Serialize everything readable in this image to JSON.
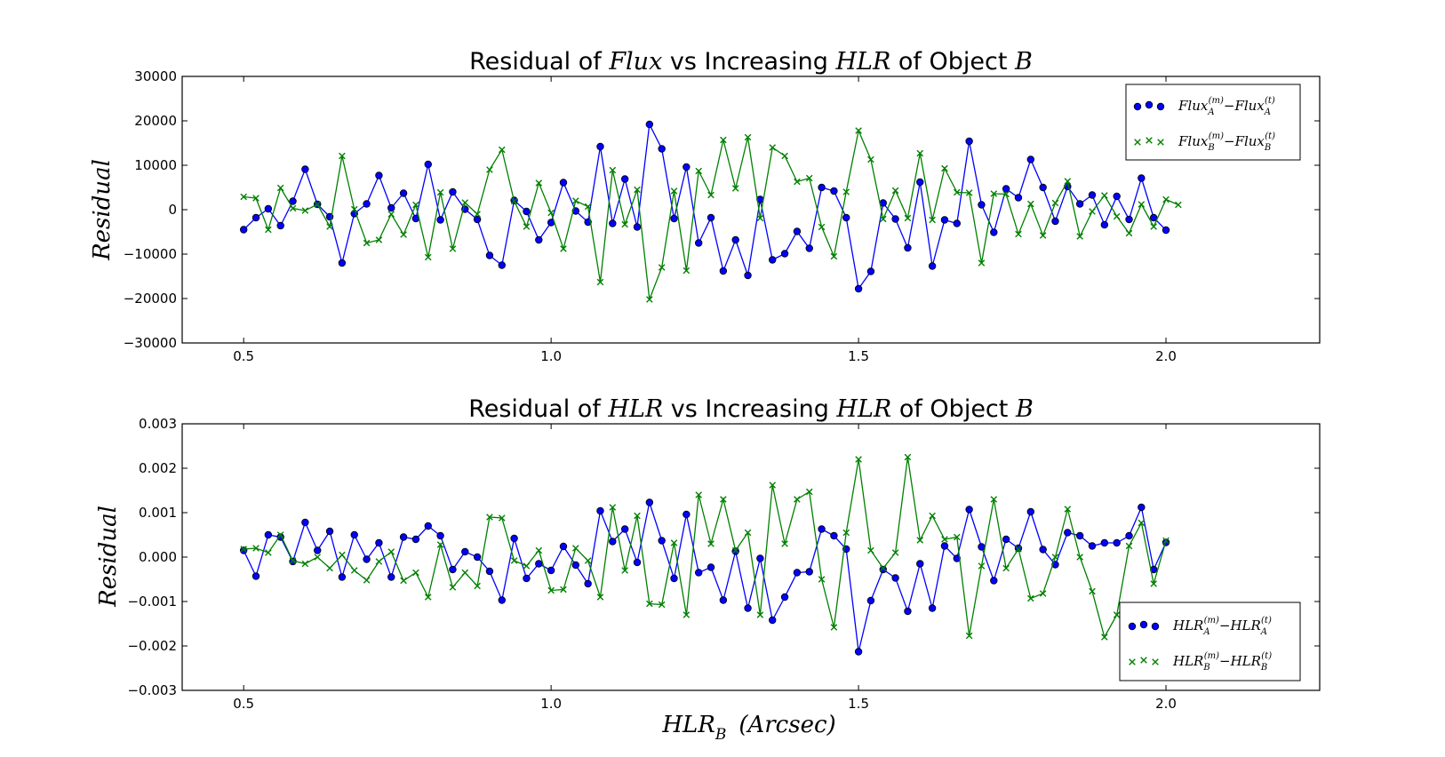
{
  "colors": {
    "blue": "#0000ff",
    "green": "#008000",
    "axes": "#000000"
  },
  "xlabel": {
    "main": "HLR",
    "sub": "B",
    "unit": "(Arcsec)"
  },
  "chart_data": [
    {
      "type": "line",
      "title": {
        "pre": "Residual of ",
        "m1": "Flux",
        "mid": " vs Increasing ",
        "m2": "HLR",
        "post": " of Object ",
        "m3": "B"
      },
      "ylabel": "Residual",
      "xlim": [
        0.4,
        2.25
      ],
      "ylim": [
        -30000,
        30000
      ],
      "xticks": [
        0.5,
        1.0,
        1.5,
        2.0
      ],
      "xtick_labels": [
        "0.5",
        "1.0",
        "1.5",
        "2.0"
      ],
      "yticks": [
        -30000,
        -20000,
        -10000,
        0,
        10000,
        20000,
        30000
      ],
      "ytick_labels": [
        "−30000",
        "−20000",
        "−10000",
        "0",
        "10000",
        "20000",
        "30000"
      ],
      "legend_position": "top-right",
      "x_start": 0.5,
      "x_step": 0.02,
      "series": [
        {
          "marker": "circle",
          "color": "#0000ff",
          "legend": {
            "base": "Flux",
            "sub": "A",
            "sup1": "(m)",
            "minus": "−",
            "base2": "Flux",
            "sub2": "A",
            "sup2": "(t)"
          },
          "values": [
            -4500,
            -1800,
            200,
            -3600,
            1900,
            9100,
            1200,
            -1600,
            -12000,
            -900,
            1300,
            7700,
            400,
            3700,
            -2000,
            10200,
            -2300,
            4000,
            100,
            -2200,
            -10300,
            -12500,
            2100,
            -400,
            -6800,
            -2900,
            6100,
            -300,
            -2800,
            14200,
            -3100,
            6900,
            -3900,
            19200,
            13700,
            -2000,
            9600,
            -7500,
            -1800,
            -13800,
            -6800,
            -14800,
            2300,
            -11300,
            -9900,
            -4900,
            -8700,
            5000,
            4200,
            -1800,
            -17800,
            -13900,
            1500,
            -2100,
            -8600,
            6200,
            -12700,
            -2300,
            -3100,
            15400,
            1100,
            -5100,
            4700,
            2700,
            11300,
            5000,
            -2600,
            5200,
            1300,
            3300,
            -3400,
            3000,
            -2200,
            7100,
            -1800,
            -4600
          ]
        },
        {
          "marker": "x",
          "color": "#008000",
          "legend": {
            "base": "Flux",
            "sub": "B",
            "sup1": "(m)",
            "minus": "−",
            "base2": "Flux",
            "sub2": "B",
            "sup2": "(t)"
          },
          "values": [
            2900,
            2600,
            -4500,
            4900,
            300,
            -200,
            1200,
            -3800,
            12100,
            100,
            -7500,
            -6800,
            -1000,
            -5600,
            1100,
            -10700,
            3900,
            -8800,
            1600,
            -1000,
            9000,
            13500,
            1900,
            -3800,
            6000,
            -700,
            -8800,
            2000,
            700,
            -16300,
            8900,
            -3300,
            4500,
            -20200,
            -13000,
            4200,
            -13700,
            8700,
            3300,
            15700,
            4800,
            16300,
            -1900,
            14000,
            12100,
            6300,
            7100,
            -3900,
            -10500,
            4000,
            17800,
            11300,
            -2100,
            4300,
            -1900,
            12700,
            -2300,
            9300,
            3900,
            3800,
            -12000,
            3600,
            3500,
            -5500,
            1300,
            -5800,
            1500,
            6400,
            -6000,
            -400,
            3200,
            -1500,
            -5300,
            1200,
            -3800,
            2300,
            1100
          ]
        }
      ]
    },
    {
      "type": "line",
      "title": {
        "pre": "Residual of ",
        "m1": "HLR",
        "mid": " vs Increasing ",
        "m2": "HLR",
        "post": " of Object ",
        "m3": "B"
      },
      "ylabel": "Residual",
      "xlim": [
        0.4,
        2.25
      ],
      "ylim": [
        -0.003,
        0.003
      ],
      "xticks": [
        0.5,
        1.0,
        1.5,
        2.0
      ],
      "xtick_labels": [
        "0.5",
        "1.0",
        "1.5",
        "2.0"
      ],
      "yticks": [
        -0.003,
        -0.002,
        -0.001,
        0.0,
        0.001,
        0.002,
        0.003
      ],
      "ytick_labels": [
        "−0.003",
        "−0.002",
        "−0.001",
        "0.000",
        "0.001",
        "0.002",
        "0.003"
      ],
      "legend_position": "lower-right",
      "x_start": 0.5,
      "x_step": 0.02,
      "series": [
        {
          "marker": "circle",
          "color": "#0000ff",
          "legend": {
            "base": "HLR",
            "sub": "A",
            "sup1": "(m)",
            "minus": "−",
            "base2": "HLR",
            "sub2": "A",
            "sup2": "(t)"
          },
          "values": [
            0.00015,
            -0.00043,
            0.0005,
            0.00045,
            -0.0001,
            0.00078,
            0.00015,
            0.00058,
            -0.00045,
            0.0005,
            -5e-05,
            0.00032,
            -0.00045,
            0.00045,
            0.0004,
            0.0007,
            0.00048,
            -0.00028,
            0.00012,
            0.0,
            -0.00032,
            -0.00097,
            0.00042,
            -0.00048,
            -0.00015,
            -0.0003,
            0.00024,
            -0.00018,
            -0.0006,
            0.00104,
            0.00035,
            0.00063,
            -0.00012,
            0.00123,
            0.00037,
            -0.00048,
            0.00096,
            -0.00035,
            -0.00023,
            -0.00097,
            0.00013,
            -0.00115,
            -3e-05,
            -0.00142,
            -0.0009,
            -0.00035,
            -0.00033,
            0.00063,
            0.00048,
            0.00018,
            -0.00213,
            -0.00098,
            -0.00028,
            -0.00047,
            -0.00122,
            -0.00015,
            -0.00115,
            0.00025,
            -3e-05,
            0.00107,
            0.00023,
            -0.00053,
            0.0004,
            0.0002,
            0.00102,
            0.00017,
            -0.00017,
            0.00055,
            0.00048,
            0.00025,
            0.00032,
            0.00032,
            0.00048,
            0.00112,
            -0.00028,
            0.00033
          ]
        },
        {
          "marker": "x",
          "color": "#008000",
          "legend": {
            "base": "HLR",
            "sub": "B",
            "sup1": "(m)",
            "minus": "−",
            "base2": "HLR",
            "sub2": "B",
            "sup2": "(t)"
          },
          "values": [
            0.00018,
            0.0002,
            0.0001,
            0.0005,
            -8e-05,
            -0.00015,
            0.0,
            -0.00025,
            5e-05,
            -0.0003,
            -0.00052,
            -0.0001,
            0.00012,
            -0.00053,
            -0.00035,
            -0.0009,
            0.00028,
            -0.00068,
            -0.00035,
            -0.00065,
            0.0009,
            0.00088,
            -8e-05,
            -0.0002,
            0.00015,
            -0.00075,
            -0.00073,
            0.0002,
            -8e-05,
            -0.0009,
            0.00112,
            -0.0003,
            0.00093,
            -0.00105,
            -0.00107,
            0.00032,
            -0.0013,
            0.0014,
            0.0003,
            0.0013,
            0.00015,
            0.00055,
            -0.0013,
            0.00162,
            0.0003,
            0.0013,
            0.00147,
            -0.0005,
            -0.00158,
            0.00055,
            0.0022,
            0.00015,
            -0.00025,
            0.0001,
            0.00225,
            0.00038,
            0.00093,
            0.0004,
            0.00045,
            -0.00177,
            -0.0002,
            0.0013,
            -0.00025,
            0.00018,
            -0.00093,
            -0.00082,
            0.0,
            0.00108,
            0.0,
            -0.00077,
            -0.0018,
            -0.0013,
            0.00025,
            0.00077,
            -0.0006,
            0.00037
          ]
        }
      ]
    }
  ]
}
